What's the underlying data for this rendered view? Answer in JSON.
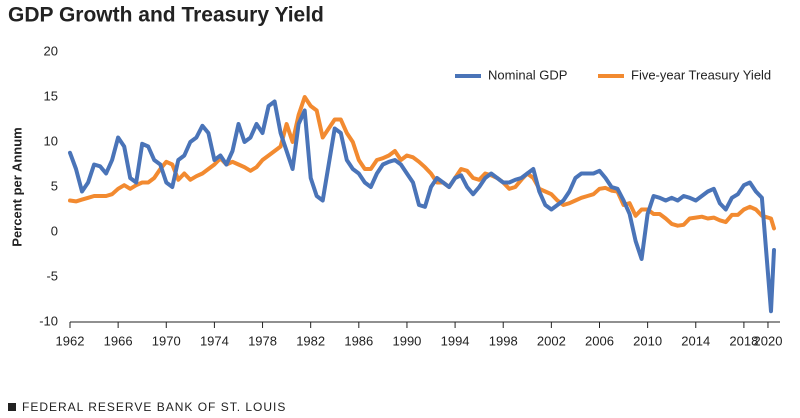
{
  "chart_data": {
    "type": "line",
    "title": "GDP Growth and Treasury Yield",
    "ylabel": "Percent per Annum",
    "source": "FEDERAL RESERVE BANK OF ST. LOUIS",
    "x": [
      1962,
      1962.5,
      1963,
      1963.5,
      1964,
      1964.5,
      1965,
      1965.5,
      1966,
      1966.5,
      1967,
      1967.5,
      1968,
      1968.5,
      1969,
      1969.5,
      1970,
      1970.5,
      1971,
      1971.5,
      1972,
      1972.5,
      1973,
      1973.5,
      1974,
      1974.5,
      1975,
      1975.5,
      1976,
      1976.5,
      1977,
      1977.5,
      1978,
      1978.5,
      1979,
      1979.5,
      1980,
      1980.5,
      1981,
      1981.5,
      1982,
      1982.5,
      1983,
      1983.5,
      1984,
      1984.5,
      1985,
      1985.5,
      1986,
      1986.5,
      1987,
      1987.5,
      1988,
      1988.5,
      1989,
      1989.5,
      1990,
      1990.5,
      1991,
      1991.5,
      1992,
      1992.5,
      1993,
      1993.5,
      1994,
      1994.5,
      1995,
      1995.5,
      1996,
      1996.5,
      1997,
      1997.5,
      1998,
      1998.5,
      1999,
      1999.5,
      2000,
      2000.5,
      2001,
      2001.5,
      2002,
      2002.5,
      2003,
      2003.5,
      2004,
      2004.5,
      2005,
      2005.5,
      2006,
      2006.5,
      2007,
      2007.5,
      2008,
      2008.5,
      2009,
      2009.5,
      2010,
      2010.5,
      2011,
      2011.5,
      2012,
      2012.5,
      2013,
      2013.5,
      2014,
      2014.5,
      2015,
      2015.5,
      2016,
      2016.5,
      2017,
      2017.5,
      2018,
      2018.5,
      2019,
      2019.5,
      2020.25,
      2020.5
    ],
    "series": [
      {
        "name": "Nominal GDP",
        "color": "#4a74b8",
        "values": [
          8.8,
          7,
          4.5,
          5.5,
          7.5,
          7.3,
          6.5,
          8,
          10.5,
          9.5,
          6,
          5.5,
          9.8,
          9.5,
          8,
          7.5,
          5.5,
          5,
          8,
          8.5,
          10,
          10.5,
          11.8,
          11,
          8,
          8.5,
          7.5,
          9,
          12,
          10,
          10.5,
          12,
          11,
          14,
          14.5,
          11,
          9,
          7,
          12,
          13.5,
          6,
          4,
          3.5,
          7.5,
          11.5,
          11,
          8,
          7,
          6.5,
          5.5,
          5,
          6.5,
          7.5,
          7.8,
          8,
          7.5,
          6.5,
          5.5,
          3,
          2.8,
          5,
          6,
          5.5,
          5,
          6,
          6.3,
          5,
          4.2,
          5,
          6,
          6.5,
          6,
          5.5,
          5.5,
          5.8,
          6,
          6.5,
          7,
          4.5,
          3,
          2.5,
          3,
          3.5,
          4.5,
          6,
          6.5,
          6.5,
          6.5,
          6.8,
          6,
          5,
          4.8,
          3.5,
          2,
          -1,
          -3,
          2,
          4,
          3.8,
          3.5,
          3.8,
          3.5,
          4,
          3.8,
          3.5,
          4,
          4.5,
          4.8,
          3.2,
          2.5,
          3.8,
          4.2,
          5.2,
          5.5,
          4.5,
          3.8,
          -8.8,
          -2
        ]
      },
      {
        "name": "Five-year Treasury Yield",
        "color": "#f28a30",
        "values": [
          3.5,
          3.4,
          3.6,
          3.8,
          4,
          4,
          4,
          4.2,
          4.8,
          5.2,
          4.8,
          5.2,
          5.5,
          5.5,
          6,
          7,
          7.8,
          7.5,
          5.8,
          6.5,
          5.8,
          6.2,
          6.5,
          7,
          7.5,
          8.2,
          7.5,
          7.8,
          7.5,
          7.2,
          6.8,
          7.2,
          8,
          8.5,
          9,
          9.5,
          12,
          10,
          13,
          15,
          14,
          13.5,
          10.5,
          11.5,
          12.5,
          12.5,
          11,
          10,
          8,
          7,
          7,
          8,
          8.2,
          8.5,
          9,
          8,
          8.5,
          8.3,
          7.8,
          7.2,
          6.5,
          5.5,
          5.5,
          5,
          6,
          7,
          6.8,
          6,
          5.8,
          6.5,
          6.3,
          6,
          5.5,
          4.8,
          5,
          5.8,
          6.5,
          6,
          4.8,
          4.5,
          4.2,
          3.5,
          3,
          3.2,
          3.5,
          3.8,
          4,
          4.2,
          4.8,
          4.9,
          4.6,
          4.5,
          3,
          3.2,
          1.8,
          2.5,
          2.5,
          2,
          2,
          1.5,
          0.9,
          0.7,
          0.8,
          1.5,
          1.6,
          1.7,
          1.5,
          1.6,
          1.3,
          1.1,
          1.9,
          1.9,
          2.5,
          2.8,
          2.5,
          1.8,
          1.5,
          0.4
        ]
      }
    ],
    "xlim": [
      1962,
      2021
    ],
    "xticks": [
      1962,
      1966,
      1970,
      1974,
      1978,
      1982,
      1986,
      1990,
      1994,
      1998,
      2002,
      2006,
      2010,
      2014,
      2018,
      2020
    ],
    "ylim": [
      -10,
      20
    ],
    "yticks": [
      -10,
      -5,
      0,
      5,
      10,
      15,
      20
    ],
    "grid": false,
    "legend": "top-right"
  }
}
